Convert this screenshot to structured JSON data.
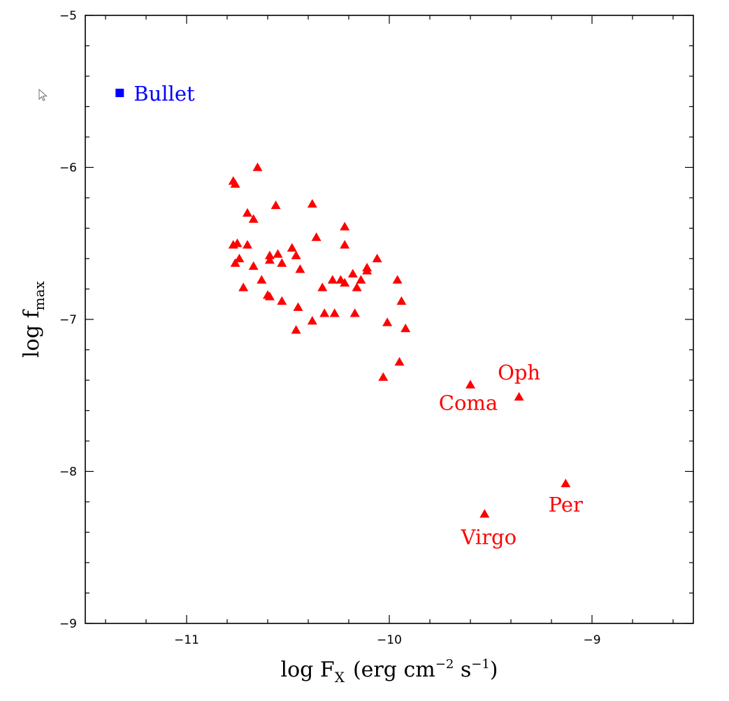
{
  "chart_data": {
    "type": "scatter",
    "xlabel": {
      "main": "log F",
      "sub": "X",
      "units": "(erg cm",
      "exp1": "−2",
      "mid": " s",
      "exp2": "−1",
      "close": ")"
    },
    "ylabel": {
      "main": "log f",
      "sub": "max"
    },
    "xlim": [
      -11.5,
      -8.5
    ],
    "ylim": [
      -9,
      -5
    ],
    "x_ticks": [
      -11,
      -10,
      -9
    ],
    "y_ticks": [
      -9,
      -8,
      -7,
      -6,
      -5
    ],
    "x_tick_labels": [
      "−11",
      "−10",
      "−9"
    ],
    "y_tick_labels": [
      "−9",
      "−8",
      "−7",
      "−6",
      "−5"
    ],
    "grid": false,
    "colors": {
      "clusters": "#ff0000",
      "bullet": "#0000ff"
    },
    "series": [
      {
        "marker": "triangle",
        "color": "#ff0000",
        "points": [
          [
            -10.77,
            -6.09
          ],
          [
            -10.76,
            -6.11
          ],
          [
            -10.65,
            -6.0
          ],
          [
            -10.7,
            -6.3
          ],
          [
            -10.67,
            -6.34
          ],
          [
            -10.56,
            -6.25
          ],
          [
            -10.38,
            -6.24
          ],
          [
            -10.36,
            -6.46
          ],
          [
            -10.22,
            -6.39
          ],
          [
            -10.22,
            -6.51
          ],
          [
            -10.77,
            -6.51
          ],
          [
            -10.75,
            -6.5
          ],
          [
            -10.7,
            -6.51
          ],
          [
            -10.76,
            -6.63
          ],
          [
            -10.74,
            -6.6
          ],
          [
            -10.67,
            -6.65
          ],
          [
            -10.59,
            -6.58
          ],
          [
            -10.55,
            -6.57
          ],
          [
            -10.59,
            -6.61
          ],
          [
            -10.53,
            -6.63
          ],
          [
            -10.48,
            -6.53
          ],
          [
            -10.46,
            -6.58
          ],
          [
            -10.44,
            -6.67
          ],
          [
            -10.72,
            -6.79
          ],
          [
            -10.63,
            -6.74
          ],
          [
            -10.6,
            -6.84
          ],
          [
            -10.59,
            -6.85
          ],
          [
            -10.53,
            -6.88
          ],
          [
            -10.45,
            -6.92
          ],
          [
            -10.38,
            -7.01
          ],
          [
            -10.46,
            -7.07
          ],
          [
            -10.33,
            -6.79
          ],
          [
            -10.28,
            -6.74
          ],
          [
            -10.24,
            -6.74
          ],
          [
            -10.22,
            -6.76
          ],
          [
            -10.18,
            -6.7
          ],
          [
            -10.16,
            -6.79
          ],
          [
            -10.14,
            -6.74
          ],
          [
            -10.11,
            -6.66
          ],
          [
            -10.11,
            -6.68
          ],
          [
            -10.06,
            -6.6
          ],
          [
            -10.32,
            -6.96
          ],
          [
            -10.27,
            -6.96
          ],
          [
            -10.17,
            -6.96
          ],
          [
            -9.96,
            -6.74
          ],
          [
            -9.94,
            -6.88
          ],
          [
            -10.01,
            -7.02
          ],
          [
            -9.92,
            -7.06
          ],
          [
            -10.03,
            -7.38
          ],
          [
            -9.95,
            -7.28
          ],
          [
            -9.6,
            -7.43
          ],
          [
            -9.36,
            -7.51
          ],
          [
            -9.13,
            -8.08
          ],
          [
            -9.53,
            -8.28
          ]
        ]
      },
      {
        "marker": "square",
        "color": "#0000ff",
        "points": [
          [
            -11.33,
            -5.51
          ]
        ]
      }
    ],
    "annotations": [
      {
        "text": "Bullet",
        "x": -11.33,
        "y": -5.51,
        "color": "#0000ff"
      },
      {
        "text": "Oph",
        "x": -9.36,
        "y": -7.51,
        "color": "#ff0000"
      },
      {
        "text": "Coma",
        "x": -9.6,
        "y": -7.43,
        "color": "#ff0000"
      },
      {
        "text": "Per",
        "x": -9.13,
        "y": -8.08,
        "color": "#ff0000"
      },
      {
        "text": "Virgo",
        "x": -9.53,
        "y": -8.28,
        "color": "#ff0000"
      }
    ]
  }
}
